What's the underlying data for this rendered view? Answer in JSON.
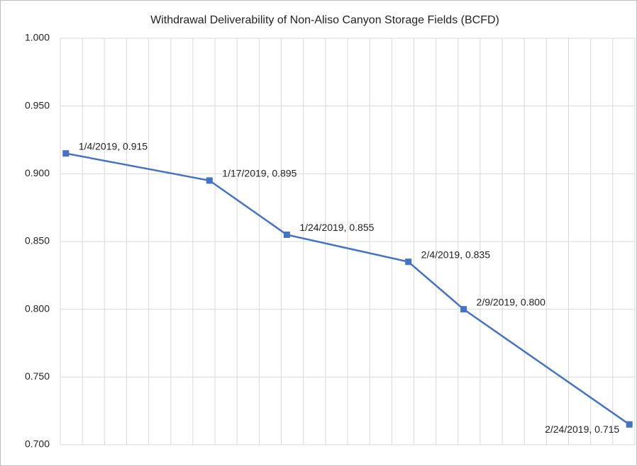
{
  "chart_data": {
    "type": "line",
    "title": "Withdrawal Deliverability of Non-Aliso Canyon Storage Fields (BCFD)",
    "x": [
      "1/4/2019",
      "1/17/2019",
      "1/24/2019",
      "2/4/2019",
      "2/9/2019",
      "2/24/2019"
    ],
    "xlim": [
      "1/4/2019",
      "2/25/2019"
    ],
    "series": [
      {
        "name": "Withdrawal Deliverability",
        "color": "#4472c4",
        "values": [
          0.915,
          0.895,
          0.855,
          0.835,
          0.8,
          0.715
        ],
        "value_labels": [
          "1/4/2019, 0.915",
          "1/17/2019, 0.895",
          "1/24/2019, 0.855",
          "2/4/2019, 0.835",
          "2/9/2019, 0.800",
          "2/24/2019, 0.715"
        ]
      }
    ],
    "ylim": [
      0.7,
      1.0
    ],
    "yticks": [
      {
        "value": 0.7,
        "label": "0.700"
      },
      {
        "value": 0.75,
        "label": "0.750"
      },
      {
        "value": 0.8,
        "label": "0.800"
      },
      {
        "value": 0.85,
        "label": "0.850"
      },
      {
        "value": 0.9,
        "label": "0.900"
      },
      {
        "value": 0.95,
        "label": "0.950"
      },
      {
        "value": 1.0,
        "label": "1.000"
      }
    ],
    "grid": true
  }
}
